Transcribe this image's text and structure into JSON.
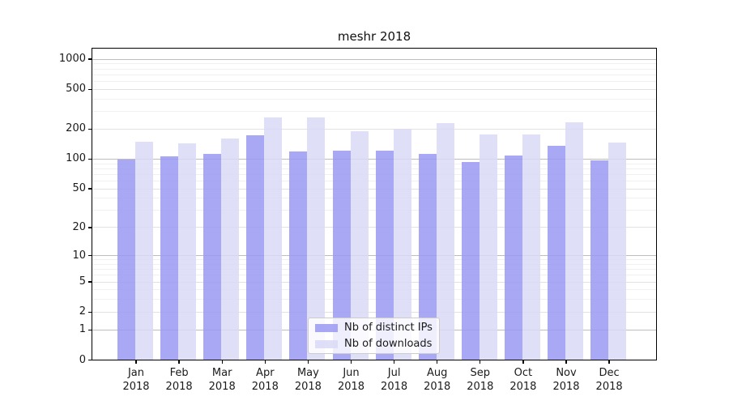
{
  "figure": {
    "title": "meshr 2018",
    "background": "#ffffff"
  },
  "chart_data": {
    "type": "bar",
    "title": "meshr 2018",
    "categories": [
      "Jan 2018",
      "Feb 2018",
      "Mar 2018",
      "Apr 2018",
      "May 2018",
      "Jun 2018",
      "Jul 2018",
      "Aug 2018",
      "Sep 2018",
      "Oct 2018",
      "Nov 2018",
      "Dec 2018"
    ],
    "series": [
      {
        "name": "Nb of distinct IPs",
        "color": "#9999f2",
        "values": [
          99,
          107,
          112,
          174,
          120,
          122,
          122,
          113,
          94,
          109,
          136,
          97
        ]
      },
      {
        "name": "Nb of downloads",
        "color": "#d9d9f7",
        "values": [
          149,
          144,
          161,
          262,
          262,
          192,
          201,
          231,
          177,
          177,
          235,
          147
        ]
      }
    ],
    "xlabel": "",
    "ylabel": "",
    "yscale": "log1p",
    "yticks": [
      0,
      1,
      2,
      5,
      10,
      20,
      50,
      100,
      200,
      500,
      1000
    ],
    "minor_yticks": [
      3,
      4,
      6,
      7,
      8,
      9,
      30,
      40,
      60,
      70,
      80,
      90,
      300,
      400,
      600,
      700,
      800,
      900
    ],
    "ylim": [
      0,
      1280
    ],
    "grid": "both",
    "legend_position": "lower center",
    "colors": {
      "grid_major_decade": "#bdbdbd",
      "grid_major_other": "#e2e2e2",
      "grid_minor": "#f0f0f0",
      "spine": "#000000",
      "text": "#1a1a1a"
    }
  }
}
